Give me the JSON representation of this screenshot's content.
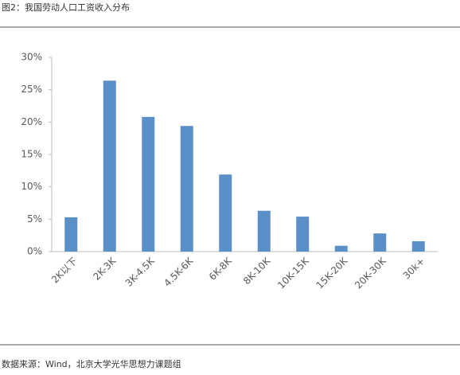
{
  "chart_data": {
    "type": "bar",
    "title": "图2：我国劳动人口工资收入分布",
    "source": "数据来源：Wind，北京大学光华思想力课题组",
    "categories": [
      "2K以下",
      "2K-3K",
      "3K-4.5K",
      "4.5K-6K",
      "6K-8K",
      "8K-10K",
      "10K-15K",
      "15K-20K",
      "20K-30K",
      "30k+"
    ],
    "values": [
      5.3,
      26.4,
      20.8,
      19.4,
      11.9,
      6.3,
      5.4,
      0.9,
      2.8,
      1.6
    ],
    "color": "#5b8fc7",
    "ylim": [
      0,
      30
    ],
    "yticks": [
      {
        "value": 0,
        "label": "0%"
      },
      {
        "value": 5,
        "label": "5%"
      },
      {
        "value": 10,
        "label": "10%"
      },
      {
        "value": 15,
        "label": "15%"
      },
      {
        "value": 20,
        "label": "20%"
      },
      {
        "value": 25,
        "label": "25%"
      },
      {
        "value": 30,
        "label": "30%"
      }
    ],
    "grid": false
  }
}
